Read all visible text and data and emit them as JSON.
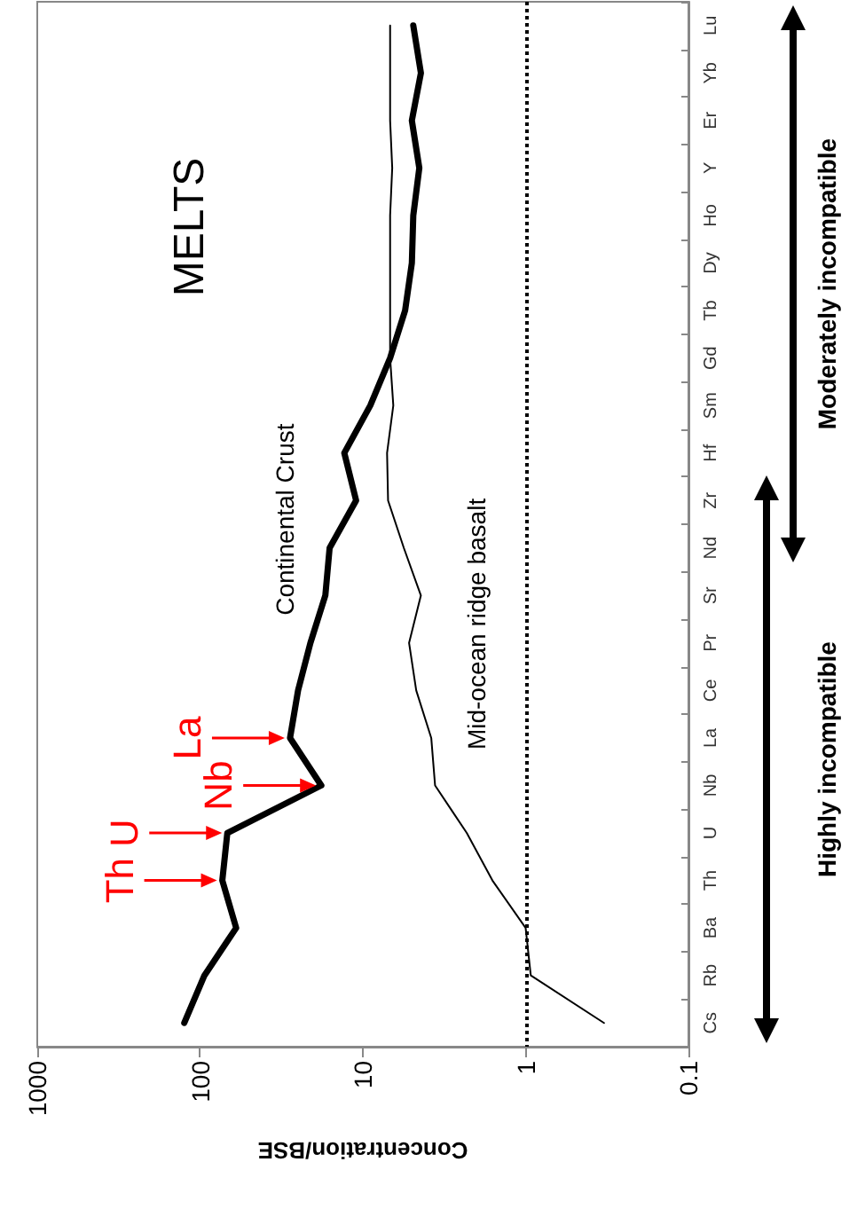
{
  "chart_data": {
    "type": "line",
    "title": "MELTS",
    "xlabel": "Concentration/BSE",
    "orientation": "horizontal",
    "categories": [
      "Lu",
      "Yb",
      "Er",
      "Y",
      "Ho",
      "Dy",
      "Tb",
      "Gd",
      "Sm",
      "Hf",
      "Zr",
      "Nd",
      "Sr",
      "Pr",
      "Ce",
      "La",
      "Nb",
      "U",
      "Th",
      "Ba",
      "Rb",
      "Cs"
    ],
    "series": [
      {
        "name": "Continental Crust",
        "color": "#000000",
        "values": [
          4.9,
          4.4,
          5.0,
          4.5,
          4.9,
          5.0,
          5.5,
          6.8,
          9,
          13,
          11,
          16,
          17,
          21,
          25,
          28,
          18,
          68,
          73,
          60,
          94,
          125
        ]
      },
      {
        "name": "Mid-ocean ridge basalt",
        "color": "#000000",
        "values": [
          6.8,
          6.8,
          6.8,
          6.6,
          6.8,
          6.8,
          6.8,
          6.8,
          6.5,
          7.1,
          7.0,
          5.6,
          4.4,
          5.2,
          4.7,
          3.8,
          3.6,
          2.3,
          1.6,
          1.0,
          0.93,
          0.33
        ]
      }
    ],
    "xlim": [
      1000,
      0.1
    ],
    "xticks": [
      1000,
      100,
      10,
      1,
      0.1
    ],
    "log": "x",
    "grid": false,
    "marker": "none",
    "line_style": "solid",
    "ref_lines": [
      {
        "axis": "x",
        "value": 1,
        "color": "#000000",
        "line_style": "dotted"
      }
    ],
    "annotations": [
      {
        "text": "Th",
        "x": 73,
        "y": "Th"
      },
      {
        "text": "U",
        "x": 68,
        "y": "U"
      },
      {
        "text": "Nb",
        "x": 18,
        "y": "Nb"
      },
      {
        "text": "La",
        "x": 28,
        "y": "La"
      },
      "Highly incompatible",
      "Moderately incompatible"
    ]
  }
}
